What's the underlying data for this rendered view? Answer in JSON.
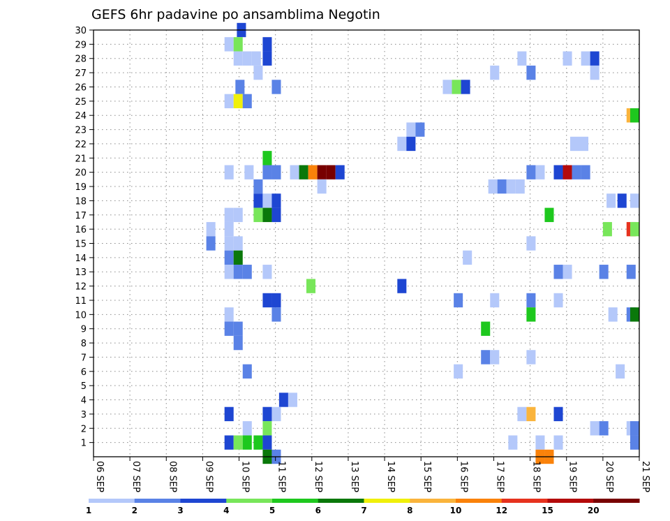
{
  "chart_data": {
    "type": "heatmap",
    "title": "GEFS 6hr padavine po ansamblima Negotin",
    "xlabel": "",
    "ylabel": "",
    "x_tick_labels": [
      "06 SEP",
      "07 SEP",
      "08 SEP",
      "09 SEP",
      "10 SEP",
      "11 SEP",
      "12 SEP",
      "13 SEP",
      "14 SEP",
      "15 SEP",
      "16 SEP",
      "17 SEP",
      "18 SEP",
      "19 SEP",
      "20 SEP",
      "21 SEP"
    ],
    "y_tick_labels": [
      "1",
      "2",
      "3",
      "4",
      "5",
      "6",
      "7",
      "8",
      "9",
      "10",
      "11",
      "12",
      "13",
      "14",
      "15",
      "16",
      "17",
      "18",
      "19",
      "20",
      "21",
      "22",
      "23",
      "24",
      "25",
      "26",
      "27",
      "28",
      "29",
      "30"
    ],
    "members": [
      0,
      30
    ],
    "grid": true,
    "colorbar": {
      "placement": "bottom",
      "labels": [
        "1",
        "2",
        "3",
        "4",
        "5",
        "6",
        "7",
        "8",
        "10",
        "12",
        "15",
        "20"
      ],
      "colors": [
        "#b4c8fa",
        "#5a82e6",
        "#1e46d2",
        "#78e65a",
        "#1ec81e",
        "#0a780a",
        "#f0f00a",
        "#fab43c",
        "#fa820a",
        "#e6321e",
        "#b40a0a",
        "#780000"
      ]
    },
    "cells": [
      {
        "member": 30,
        "day": 3.94,
        "bin": 3
      },
      {
        "member": 29,
        "day": 3.6,
        "bin": 1
      },
      {
        "member": 29,
        "day": 3.85,
        "bin": 4
      },
      {
        "member": 29,
        "day": 4.65,
        "bin": 3
      },
      {
        "member": 28,
        "day": 3.85,
        "bin": 1
      },
      {
        "member": 28,
        "day": 4.1,
        "bin": 1
      },
      {
        "member": 28,
        "day": 4.35,
        "bin": 1
      },
      {
        "member": 28,
        "day": 4.65,
        "bin": 3
      },
      {
        "member": 28,
        "day": 11.65,
        "bin": 1
      },
      {
        "member": 28,
        "day": 12.9,
        "bin": 1
      },
      {
        "member": 28,
        "day": 13.4,
        "bin": 1
      },
      {
        "member": 28,
        "day": 13.65,
        "bin": 3
      },
      {
        "member": 27,
        "day": 4.4,
        "bin": 1
      },
      {
        "member": 27,
        "day": 10.9,
        "bin": 1
      },
      {
        "member": 27,
        "day": 11.9,
        "bin": 2
      },
      {
        "member": 27,
        "day": 13.65,
        "bin": 1
      },
      {
        "member": 26,
        "day": 3.9,
        "bin": 2
      },
      {
        "member": 26,
        "day": 4.9,
        "bin": 2
      },
      {
        "member": 26,
        "day": 9.6,
        "bin": 1
      },
      {
        "member": 26,
        "day": 9.85,
        "bin": 4
      },
      {
        "member": 26,
        "day": 10.1,
        "bin": 3
      },
      {
        "member": 25,
        "day": 3.6,
        "bin": 1
      },
      {
        "member": 25,
        "day": 3.85,
        "bin": 7
      },
      {
        "member": 25,
        "day": 4.1,
        "bin": 2
      },
      {
        "member": 24,
        "day": 14.65,
        "bin": 8
      },
      {
        "member": 24,
        "day": 14.9,
        "bin": 5
      },
      {
        "member": 23,
        "day": 8.6,
        "bin": 1
      },
      {
        "member": 23,
        "day": 8.85,
        "bin": 2
      },
      {
        "member": 22,
        "day": 8.35,
        "bin": 1
      },
      {
        "member": 22,
        "day": 8.6,
        "bin": 3
      },
      {
        "member": 22,
        "day": 13.1,
        "bin": 1
      },
      {
        "member": 22,
        "day": 13.35,
        "bin": 1
      },
      {
        "member": 21,
        "day": 4.65,
        "bin": 5
      },
      {
        "member": 20,
        "day": 3.6,
        "bin": 1
      },
      {
        "member": 20,
        "day": 4.15,
        "bin": 1
      },
      {
        "member": 20,
        "day": 4.65,
        "bin": 2
      },
      {
        "member": 20,
        "day": 4.9,
        "bin": 2
      },
      {
        "member": 20,
        "day": 5.4,
        "bin": 1
      },
      {
        "member": 20,
        "day": 5.65,
        "bin": 6
      },
      {
        "member": 20,
        "day": 5.9,
        "bin": 9
      },
      {
        "member": 20,
        "day": 6.15,
        "bin": 12
      },
      {
        "member": 20,
        "day": 6.4,
        "bin": 12
      },
      {
        "member": 20,
        "day": 6.65,
        "bin": 3
      },
      {
        "member": 20,
        "day": 11.9,
        "bin": 2
      },
      {
        "member": 20,
        "day": 12.15,
        "bin": 1
      },
      {
        "member": 20,
        "day": 12.65,
        "bin": 3
      },
      {
        "member": 20,
        "day": 12.9,
        "bin": 11
      },
      {
        "member": 20,
        "day": 13.15,
        "bin": 2
      },
      {
        "member": 20,
        "day": 13.4,
        "bin": 2
      },
      {
        "member": 19,
        "day": 4.4,
        "bin": 2
      },
      {
        "member": 19,
        "day": 6.15,
        "bin": 1
      },
      {
        "member": 19,
        "day": 10.85,
        "bin": 1
      },
      {
        "member": 19,
        "day": 11.1,
        "bin": 2
      },
      {
        "member": 19,
        "day": 11.35,
        "bin": 1
      },
      {
        "member": 19,
        "day": 11.6,
        "bin": 1
      },
      {
        "member": 18,
        "day": 4.4,
        "bin": 3
      },
      {
        "member": 18,
        "day": 4.65,
        "bin": 1
      },
      {
        "member": 18,
        "day": 4.9,
        "bin": 3
      },
      {
        "member": 18,
        "day": 14.1,
        "bin": 1
      },
      {
        "member": 18,
        "day": 14.4,
        "bin": 3
      },
      {
        "member": 18,
        "day": 14.85,
        "bin": 1
      },
      {
        "member": 17,
        "day": 3.6,
        "bin": 1
      },
      {
        "member": 17,
        "day": 3.85,
        "bin": 1
      },
      {
        "member": 17,
        "day": 4.4,
        "bin": 4
      },
      {
        "member": 17,
        "day": 4.65,
        "bin": 6
      },
      {
        "member": 17,
        "day": 4.9,
        "bin": 3
      },
      {
        "member": 17,
        "day": 12.4,
        "bin": 5
      },
      {
        "member": 16,
        "day": 3.1,
        "bin": 1
      },
      {
        "member": 16,
        "day": 3.6,
        "bin": 1
      },
      {
        "member": 16,
        "day": 14.0,
        "bin": 4
      },
      {
        "member": 16,
        "day": 14.65,
        "bin": 10
      },
      {
        "member": 16,
        "day": 14.9,
        "bin": 4
      },
      {
        "member": 15,
        "day": 3.1,
        "bin": 2
      },
      {
        "member": 15,
        "day": 3.6,
        "bin": 1
      },
      {
        "member": 15,
        "day": 3.85,
        "bin": 1
      },
      {
        "member": 15,
        "day": 11.9,
        "bin": 1
      },
      {
        "member": 14,
        "day": 3.6,
        "bin": 2
      },
      {
        "member": 14,
        "day": 3.85,
        "bin": 6
      },
      {
        "member": 14,
        "day": 10.15,
        "bin": 1
      },
      {
        "member": 13,
        "day": 3.6,
        "bin": 1
      },
      {
        "member": 13,
        "day": 3.85,
        "bin": 2
      },
      {
        "member": 13,
        "day": 4.1,
        "bin": 2
      },
      {
        "member": 13,
        "day": 4.65,
        "bin": 1
      },
      {
        "member": 13,
        "day": 12.65,
        "bin": 2
      },
      {
        "member": 13,
        "day": 12.9,
        "bin": 1
      },
      {
        "member": 13,
        "day": 13.9,
        "bin": 2
      },
      {
        "member": 13,
        "day": 14.65,
        "bin": 2
      },
      {
        "member": 12,
        "day": 5.85,
        "bin": 4
      },
      {
        "member": 12,
        "day": 8.35,
        "bin": 3
      },
      {
        "member": 11,
        "day": 4.65,
        "bin": 3
      },
      {
        "member": 11,
        "day": 4.9,
        "bin": 3
      },
      {
        "member": 11,
        "day": 9.9,
        "bin": 2
      },
      {
        "member": 11,
        "day": 10.9,
        "bin": 1
      },
      {
        "member": 11,
        "day": 11.9,
        "bin": 2
      },
      {
        "member": 11,
        "day": 12.65,
        "bin": 1
      },
      {
        "member": 10,
        "day": 3.6,
        "bin": 1
      },
      {
        "member": 10,
        "day": 4.9,
        "bin": 2
      },
      {
        "member": 10,
        "day": 11.9,
        "bin": 5
      },
      {
        "member": 10,
        "day": 14.15,
        "bin": 1
      },
      {
        "member": 10,
        "day": 14.65,
        "bin": 2
      },
      {
        "member": 10,
        "day": 14.9,
        "bin": 6
      },
      {
        "member": 9,
        "day": 3.6,
        "bin": 2
      },
      {
        "member": 9,
        "day": 3.85,
        "bin": 2
      },
      {
        "member": 9,
        "day": 10.65,
        "bin": 5
      },
      {
        "member": 8,
        "day": 3.85,
        "bin": 2
      },
      {
        "member": 7,
        "day": 10.65,
        "bin": 2
      },
      {
        "member": 7,
        "day": 10.9,
        "bin": 1
      },
      {
        "member": 7,
        "day": 11.9,
        "bin": 1
      },
      {
        "member": 6,
        "day": 4.1,
        "bin": 2
      },
      {
        "member": 6,
        "day": 9.9,
        "bin": 1
      },
      {
        "member": 6,
        "day": 14.35,
        "bin": 1
      },
      {
        "member": 4,
        "day": 5.1,
        "bin": 3
      },
      {
        "member": 4,
        "day": 5.35,
        "bin": 1
      },
      {
        "member": 3,
        "day": 3.6,
        "bin": 3
      },
      {
        "member": 3,
        "day": 4.65,
        "bin": 3
      },
      {
        "member": 3,
        "day": 4.9,
        "bin": 1
      },
      {
        "member": 3,
        "day": 11.65,
        "bin": 1
      },
      {
        "member": 3,
        "day": 11.9,
        "bin": 8
      },
      {
        "member": 3,
        "day": 12.65,
        "bin": 3
      },
      {
        "member": 2,
        "day": 4.1,
        "bin": 1
      },
      {
        "member": 2,
        "day": 4.65,
        "bin": 4
      },
      {
        "member": 2,
        "day": 13.65,
        "bin": 1
      },
      {
        "member": 2,
        "day": 13.9,
        "bin": 2
      },
      {
        "member": 2,
        "day": 14.65,
        "bin": 1
      },
      {
        "member": 2,
        "day": 14.9,
        "bin": 2
      },
      {
        "member": 1,
        "day": 3.6,
        "bin": 3
      },
      {
        "member": 1,
        "day": 3.85,
        "bin": 4
      },
      {
        "member": 1,
        "day": 4.1,
        "bin": 5
      },
      {
        "member": 1,
        "day": 4.4,
        "bin": 5
      },
      {
        "member": 1,
        "day": 4.65,
        "bin": 3
      },
      {
        "member": 1,
        "day": 11.4,
        "bin": 1
      },
      {
        "member": 1,
        "day": 12.15,
        "bin": 1
      },
      {
        "member": 1,
        "day": 12.65,
        "bin": 1
      },
      {
        "member": 1,
        "day": 14.9,
        "bin": 2
      },
      {
        "member": 0,
        "day": 4.65,
        "bin": 6
      },
      {
        "member": 0,
        "day": 4.9,
        "bin": 2
      },
      {
        "member": 0,
        "day": 12.15,
        "bin": 9
      },
      {
        "member": 0,
        "day": 12.4,
        "bin": 9
      }
    ]
  }
}
